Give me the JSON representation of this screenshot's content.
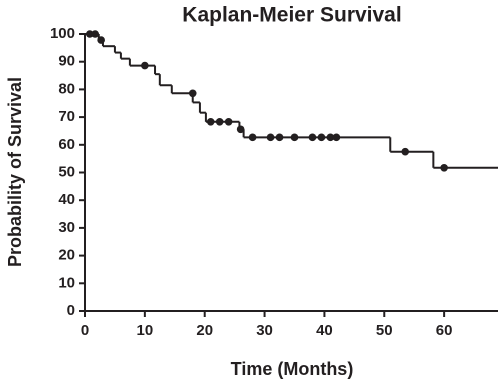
{
  "chart_data": {
    "type": "step",
    "title": "Kaplan-Meier Survival",
    "x_label": "Time (Months)",
    "y_label": "Probability of Survival",
    "xlim": [
      0,
      69
    ],
    "ylim": [
      0,
      100
    ],
    "xticks": [
      0,
      10,
      20,
      30,
      40,
      50,
      60
    ],
    "yticks": [
      0,
      10,
      20,
      30,
      40,
      50,
      60,
      70,
      80,
      90,
      100
    ],
    "color": "#231f20",
    "series": [
      {
        "marker": "none",
        "x": [
          0,
          2.3,
          3,
          5,
          6,
          7.5,
          11.7,
          12.5,
          14.5,
          18,
          19.2,
          20.2,
          25.8,
          26.5,
          51,
          58.2,
          69
        ],
        "values": [
          100,
          97.8,
          95.6,
          93.3,
          91.1,
          88.6,
          85.5,
          81.5,
          78.6,
          75.3,
          71.6,
          68.3,
          65.6,
          62.7,
          57.5,
          51.7,
          51.7
        ]
      },
      {
        "marker": "circle",
        "x": [
          0.8,
          1.7,
          2.7,
          10,
          18,
          21,
          22.5,
          24,
          26,
          28,
          31,
          32.5,
          35,
          38,
          39.5,
          41,
          42,
          53.5,
          60
        ],
        "values": [
          100,
          100,
          97.8,
          88.6,
          78.6,
          68.3,
          68.3,
          68.3,
          65.6,
          62.7,
          62.7,
          62.7,
          62.7,
          62.7,
          62.7,
          62.7,
          62.7,
          57.5,
          51.7
        ]
      }
    ]
  }
}
